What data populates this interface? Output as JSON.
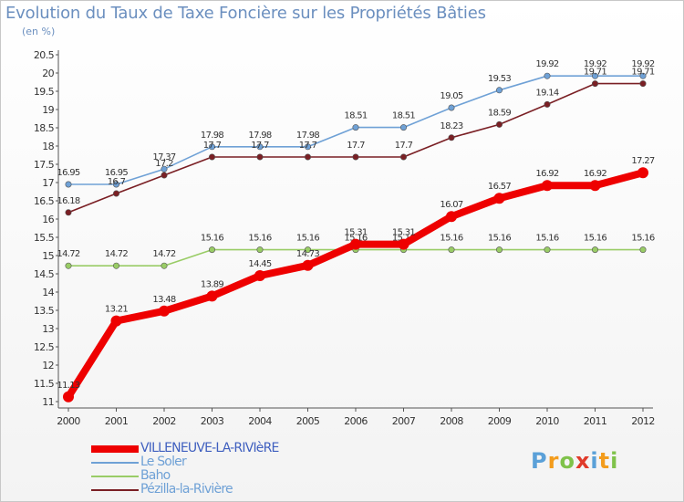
{
  "chart_data": {
    "type": "line",
    "title": "Evolution du Taux de Taxe Foncière sur les Propriétés Bâties",
    "unit": "(en %)",
    "categories": [
      "2000",
      "2001",
      "2002",
      "2003",
      "2004",
      "2005",
      "2006",
      "2007",
      "2008",
      "2009",
      "2010",
      "2011",
      "2012"
    ],
    "ylim": [
      11,
      20.5
    ],
    "yticks": [
      "11",
      "11.5",
      "12",
      "12.5",
      "13",
      "13.5",
      "14",
      "14.5",
      "15",
      "15.5",
      "16",
      "16.5",
      "17",
      "17.5",
      "18",
      "18.5",
      "19",
      "19.5",
      "20",
      "20.5"
    ],
    "grid": false,
    "series": [
      {
        "name": "Baho",
        "color": "#99cc66",
        "values": [
          14.72,
          14.72,
          14.72,
          15.16,
          15.16,
          15.16,
          15.16,
          15.16,
          15.16,
          15.16,
          15.16,
          15.16,
          15.16
        ],
        "labels": [
          "14.72",
          "14.72",
          "14.72",
          "15.16",
          "15.16",
          "15.16",
          "15.16",
          "15.16",
          "15.16",
          "15.16",
          "15.16",
          "15.16",
          "15.16"
        ]
      },
      {
        "name": "Le Soler",
        "color": "#6fa1d6",
        "values": [
          16.95,
          16.95,
          17.37,
          17.98,
          17.98,
          17.98,
          18.51,
          18.51,
          19.05,
          19.53,
          19.92,
          19.92,
          19.92
        ],
        "labels": [
          "16.95",
          "16.95",
          "17.37",
          "17.98",
          "17.98",
          "17.98",
          "18.51",
          "18.51",
          "19.05",
          "19.53",
          "19.92",
          "19.92",
          "19.92"
        ]
      },
      {
        "name": "Pézilla-la-Rivière",
        "color": "#7a1f24",
        "values": [
          16.18,
          16.7,
          17.2,
          17.7,
          17.7,
          17.7,
          17.7,
          17.7,
          18.23,
          18.59,
          19.14,
          19.71,
          19.71
        ],
        "labels": [
          "16.18",
          "16.7",
          "17.2",
          "17.7",
          "17.7",
          "17.7",
          "17.7",
          "17.7",
          "18.23",
          "18.59",
          "19.14",
          "19.71",
          "19.71"
        ]
      },
      {
        "name": "VILLENEUVE-LA-RIVIèRE",
        "color": "#ee0000",
        "values": [
          11.13,
          13.21,
          13.48,
          13.89,
          14.45,
          14.73,
          15.31,
          15.31,
          16.07,
          16.57,
          16.92,
          16.92,
          17.27
        ],
        "labels": [
          "11.13",
          "13.21",
          "13.48",
          "13.89",
          "14.45",
          "14.73",
          "15.31",
          "15.31",
          "16.07",
          "16.57",
          "16.92",
          "16.92",
          "17.27"
        ]
      }
    ],
    "legend": {
      "placement": "bottom-left",
      "entries": [
        {
          "label": "VILLENEUVE-LA-RIVIèRE",
          "color": "#ee0000",
          "text_color": "#3f5fbf"
        },
        {
          "label": "Le Soler",
          "color": "#6fa1d6",
          "text_color": "#6fa1d6"
        },
        {
          "label": "Baho",
          "color": "#99cc66",
          "text_color": "#6fa1d6"
        },
        {
          "label": "Pézilla-la-Rivière",
          "color": "#7a1f24",
          "text_color": "#6fa1d6"
        }
      ]
    }
  },
  "logo": {
    "letters": [
      "P",
      "r",
      "o",
      "x",
      "i",
      "t",
      "i"
    ],
    "colors": [
      "#5aa0d8",
      "#f39c1c",
      "#7fc24a",
      "#e03a2a",
      "#5aa0d8",
      "#f39c1c",
      "#7fc24a"
    ]
  }
}
